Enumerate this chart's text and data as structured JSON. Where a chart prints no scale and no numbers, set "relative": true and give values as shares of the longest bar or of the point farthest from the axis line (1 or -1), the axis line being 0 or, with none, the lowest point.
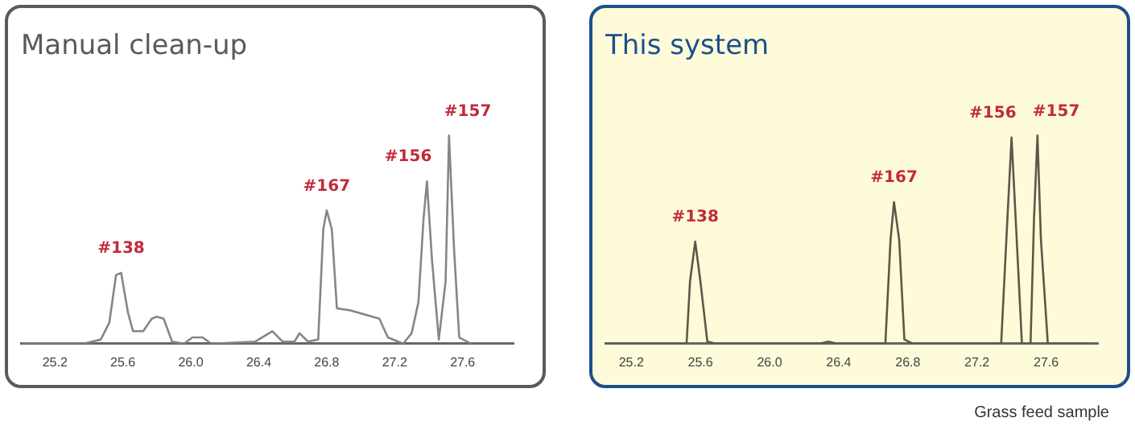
{
  "chart_data": [
    {
      "type": "line",
      "title": "Manual clean-up",
      "relative": true,
      "xlim": [
        25.0,
        27.9
      ],
      "xticks": [
        25.2,
        25.6,
        {
          "value": 26,
          "label": "26.0"
        },
        26.4,
        26.8,
        27.2,
        27.6
      ],
      "grid": false,
      "legend": false,
      "marker": "none",
      "series": [
        {
          "color": "#8a8580",
          "x": [
            25.01,
            25.37,
            25.47,
            25.52,
            25.56,
            25.59,
            25.63,
            25.66,
            25.72,
            25.77,
            25.8,
            25.84,
            25.89,
            25.96,
            26.01,
            26.07,
            26.12,
            26.38,
            26.48,
            26.54,
            26.61,
            26.64,
            26.69,
            26.75,
            26.78,
            26.8,
            26.83,
            26.86,
            26.94,
            27.11,
            27.16,
            27.25,
            27.3,
            27.34,
            27.37,
            27.39,
            27.42,
            27.46,
            27.5,
            27.52,
            27.55,
            27.58,
            27.65
          ],
          "values": [
            0,
            0,
            0.02,
            0.1,
            0.33,
            0.34,
            0.15,
            0.06,
            0.06,
            0.12,
            0.13,
            0.12,
            0.01,
            0,
            0.03,
            0.03,
            0,
            0.01,
            0.06,
            0.01,
            0.01,
            0.05,
            0.01,
            0.02,
            0.55,
            0.64,
            0.55,
            0.17,
            0.16,
            0.12,
            0.03,
            0,
            0.05,
            0.2,
            0.6,
            0.78,
            0.4,
            0.02,
            0.3,
            1,
            0.45,
            0.03,
            0
          ]
        }
      ],
      "annotations": [
        {
          "text": "#138",
          "x": 25.59,
          "y": 0.34
        },
        {
          "text": "#167",
          "x": 26.8,
          "y": 0.64
        },
        {
          "text": "#156",
          "x": 27.39,
          "y": 0.78
        },
        {
          "text": "#157",
          "x": 27.52,
          "y": 1
        }
      ]
    },
    {
      "type": "line",
      "title": "This system",
      "relative": true,
      "xlim": [
        25.05,
        27.9
      ],
      "xticks": [
        25.2,
        25.6,
        {
          "value": 26,
          "label": "26.0"
        },
        26.4,
        26.8,
        27.2,
        27.6
      ],
      "grid": false,
      "legend": false,
      "marker": "none",
      "series": [
        {
          "color": "#5c5848",
          "x": [
            25.05,
            25.52,
            25.54,
            25.57,
            25.6,
            25.64,
            25.69,
            26.29,
            26.34,
            26.39,
            26.67,
            26.7,
            26.72,
            26.75,
            26.78,
            26.83,
            27.34,
            27.37,
            27.4,
            27.43,
            27.46,
            27.51,
            27.53,
            27.55,
            27.57,
            27.61,
            27.85
          ],
          "values": [
            0,
            0,
            0.3,
            0.49,
            0.3,
            0.01,
            0,
            0,
            0.01,
            0,
            0,
            0.5,
            0.68,
            0.5,
            0.02,
            0,
            0,
            0.5,
            0.99,
            0.5,
            0,
            0,
            0.6,
            1,
            0.5,
            0,
            0
          ]
        }
      ],
      "annotations": [
        {
          "text": "#138",
          "x": 25.57,
          "y": 0.49
        },
        {
          "text": "#167",
          "x": 26.72,
          "y": 0.68
        },
        {
          "text": "#156",
          "x": 27.4,
          "y": 0.99
        },
        {
          "text": "#157",
          "x": 27.55,
          "y": 1
        },
        "Grass feed sample"
      ]
    }
  ]
}
